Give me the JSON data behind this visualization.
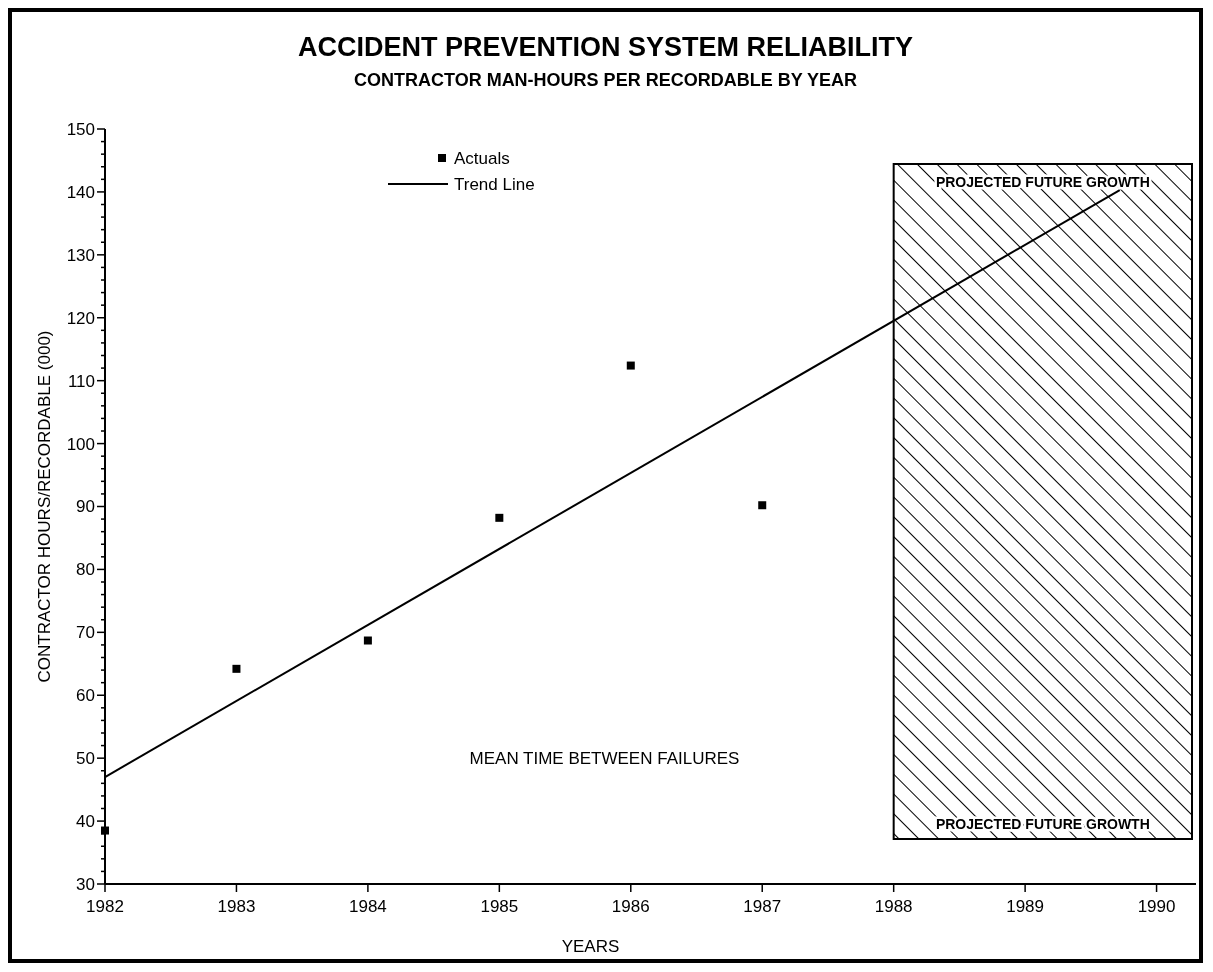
{
  "chart_data": {
    "type": "scatter",
    "title": "ACCIDENT PREVENTION SYSTEM RELIABILITY",
    "subtitle": "CONTRACTOR MAN-HOURS PER RECORDABLE BY YEAR",
    "xlabel": "YEARS",
    "ylabel": "CONTRACTOR HOURS/RECORDABLE (000)",
    "x": [
      1982,
      1983,
      1984,
      1985,
      1986,
      1987
    ],
    "series": [
      {
        "name": "Actuals",
        "color": "#000000",
        "marker": "square",
        "values": [
          38.5,
          64.2,
          68.7,
          88.2,
          112.4,
          90.2
        ]
      },
      {
        "name": "Trend Line",
        "type": "line",
        "color": "#000000",
        "marker": "none",
        "line_style": "solid",
        "x": [
          1982,
          1989.72
        ],
        "values": [
          47,
          140.3
        ]
      }
    ],
    "xlim": [
      1982,
      1990.3
    ],
    "xticks": [
      1982,
      1983,
      1984,
      1985,
      1986,
      1987,
      1988,
      1989,
      1990
    ],
    "ylim": [
      30,
      150
    ],
    "yticks": [
      30,
      {
        "value": 32,
        "label": null
      },
      {
        "value": 34,
        "label": null
      },
      {
        "value": 36,
        "label": null
      },
      {
        "value": 38,
        "label": null
      },
      40,
      {
        "value": 42,
        "label": null
      },
      {
        "value": 44,
        "label": null
      },
      {
        "value": 46,
        "label": null
      },
      {
        "value": 48,
        "label": null
      },
      50,
      {
        "value": 52,
        "label": null
      },
      {
        "value": 54,
        "label": null
      },
      {
        "value": 56,
        "label": null
      },
      {
        "value": 58,
        "label": null
      },
      60,
      {
        "value": 62,
        "label": null
      },
      {
        "value": 64,
        "label": null
      },
      {
        "value": 66,
        "label": null
      },
      {
        "value": 68,
        "label": null
      },
      70,
      {
        "value": 72,
        "label": null
      },
      {
        "value": 74,
        "label": null
      },
      {
        "value": 76,
        "label": null
      },
      {
        "value": 78,
        "label": null
      },
      80,
      {
        "value": 82,
        "label": null
      },
      {
        "value": 84,
        "label": null
      },
      {
        "value": 86,
        "label": null
      },
      {
        "value": 88,
        "label": null
      },
      90,
      {
        "value": 92,
        "label": null
      },
      {
        "value": 94,
        "label": null
      },
      {
        "value": 96,
        "label": null
      },
      {
        "value": 98,
        "label": null
      },
      100,
      {
        "value": 102,
        "label": null
      },
      {
        "value": 104,
        "label": null
      },
      {
        "value": 106,
        "label": null
      },
      {
        "value": 108,
        "label": null
      },
      110,
      {
        "value": 112,
        "label": null
      },
      {
        "value": 114,
        "label": null
      },
      {
        "value": 116,
        "label": null
      },
      {
        "value": 118,
        "label": null
      },
      120,
      {
        "value": 122,
        "label": null
      },
      {
        "value": 124,
        "label": null
      },
      {
        "value": 126,
        "label": null
      },
      {
        "value": 128,
        "label": null
      },
      130,
      {
        "value": 132,
        "label": null
      },
      {
        "value": 134,
        "label": null
      },
      {
        "value": 136,
        "label": null
      },
      {
        "value": 138,
        "label": null
      },
      140,
      {
        "value": 142,
        "label": null
      },
      {
        "value": 144,
        "label": null
      },
      {
        "value": 146,
        "label": null
      },
      {
        "value": 148,
        "label": null
      },
      150
    ],
    "bands": [
      {
        "axis": "x",
        "from": 1988,
        "to": 1990.3,
        "label": "PROJECTED FUTURE GROWTH",
        "color": "#000000"
      }
    ],
    "annotations": [
      "PROJECTED FUTURE GROWTH",
      "MEAN TIME BETWEEN FAILURES"
    ],
    "legend": "top",
    "grid": false
  }
}
